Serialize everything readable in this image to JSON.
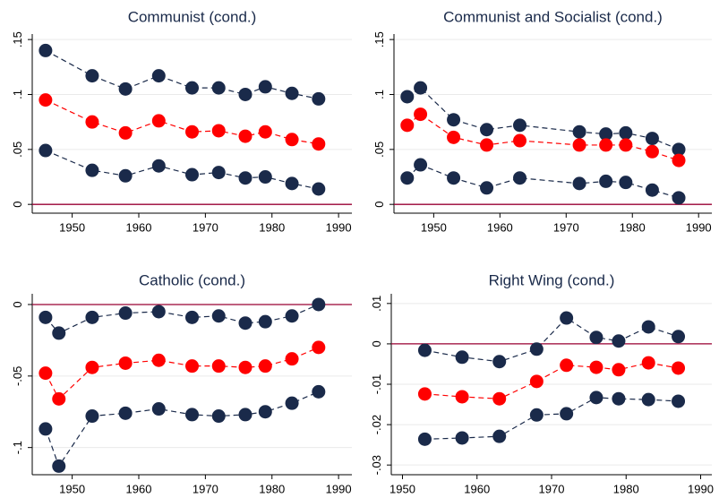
{
  "chart_data": [
    {
      "type": "line",
      "title": "Communist (cond.)",
      "x": [
        1946,
        1953,
        1958,
        1963,
        1968,
        1972,
        1976,
        1979,
        1983,
        1987
      ],
      "series": [
        {
          "color": "#1a2a4a",
          "values": [
            0.14,
            0.117,
            0.105,
            0.117,
            0.106,
            0.106,
            0.1,
            0.107,
            0.101,
            0.096
          ]
        },
        {
          "color": "#ff0000",
          "values": [
            0.095,
            0.075,
            0.065,
            0.076,
            0.066,
            0.067,
            0.062,
            0.066,
            0.059,
            0.055
          ]
        },
        {
          "color": "#1a2a4a",
          "values": [
            0.049,
            0.031,
            0.026,
            0.035,
            0.027,
            0.029,
            0.024,
            0.025,
            0.019,
            0.014
          ]
        }
      ],
      "xlim": [
        1944,
        1992
      ],
      "xticks": [
        1950,
        1960,
        1970,
        1980,
        1990
      ],
      "ylim": [
        -0.008,
        0.155
      ],
      "yticks": [
        0,
        {
          "value": 0.05,
          "label": ".05"
        },
        {
          "value": 0.1,
          "label": ".1"
        },
        {
          "value": 0.15,
          "label": ".15"
        }
      ],
      "grid": true,
      "hline": 0,
      "hline_color": "#990033"
    },
    {
      "type": "line",
      "title": "Communist and Socialist (cond.)",
      "x": [
        1946,
        1948,
        1953,
        1958,
        1963,
        1972,
        1976,
        1979,
        1983,
        1987
      ],
      "series": [
        {
          "color": "#1a2a4a",
          "values": [
            0.098,
            0.106,
            0.077,
            0.068,
            0.072,
            0.066,
            0.064,
            0.065,
            0.06,
            0.05
          ]
        },
        {
          "color": "#ff0000",
          "values": [
            0.072,
            0.082,
            0.061,
            0.054,
            0.058,
            0.054,
            0.054,
            0.054,
            0.048,
            0.04
          ]
        },
        {
          "color": "#1a2a4a",
          "values": [
            0.024,
            0.036,
            0.024,
            0.015,
            0.024,
            0.019,
            0.021,
            0.02,
            0.013,
            0.006
          ]
        }
      ],
      "xlim": [
        1944,
        1992
      ],
      "xticks": [
        1950,
        1960,
        1970,
        1980,
        1990
      ],
      "ylim": [
        -0.008,
        0.155
      ],
      "yticks": [
        0,
        {
          "value": 0.05,
          "label": ".05"
        },
        {
          "value": 0.1,
          "label": ".1"
        },
        {
          "value": 0.15,
          "label": ".15"
        }
      ],
      "grid": true,
      "hline": 0,
      "hline_color": "#990033"
    },
    {
      "type": "line",
      "title": "Catholic (cond.)",
      "x": [
        1946,
        1948,
        1953,
        1958,
        1963,
        1968,
        1972,
        1976,
        1979,
        1983,
        1987
      ],
      "series": [
        {
          "color": "#1a2a4a",
          "values": [
            -0.009,
            -0.02,
            -0.009,
            -0.006,
            -0.005,
            -0.009,
            -0.008,
            -0.013,
            -0.012,
            -0.008,
            0.0
          ]
        },
        {
          "color": "#ff0000",
          "values": [
            -0.048,
            -0.066,
            -0.044,
            -0.041,
            -0.039,
            -0.043,
            -0.043,
            -0.044,
            -0.043,
            -0.038,
            -0.03
          ]
        },
        {
          "color": "#1a2a4a",
          "values": [
            -0.087,
            -0.113,
            -0.078,
            -0.076,
            -0.073,
            -0.077,
            -0.078,
            -0.077,
            -0.075,
            -0.069,
            -0.061
          ]
        }
      ],
      "xlim": [
        1944,
        1992
      ],
      "xticks": [
        1950,
        1960,
        1970,
        1980,
        1990
      ],
      "ylim": [
        -0.119,
        0.0075
      ],
      "yticks": [
        {
          "value": -0.1,
          "label": "-.1"
        },
        {
          "value": -0.05,
          "label": "-.05"
        },
        0
      ],
      "grid": true,
      "hline": 0,
      "hline_color": "#990033"
    },
    {
      "type": "line",
      "title": "Right Wing (cond.)",
      "x": [
        1953,
        1958,
        1963,
        1968,
        1972,
        1976,
        1979,
        1983,
        1987
      ],
      "series": [
        {
          "color": "#1a2a4a",
          "values": [
            -0.0016,
            -0.0033,
            -0.0044,
            -0.0013,
            0.0064,
            0.0016,
            0.0007,
            0.0042,
            0.0018
          ]
        },
        {
          "color": "#ff0000",
          "values": [
            -0.0124,
            -0.0131,
            -0.0136,
            -0.0093,
            -0.0053,
            -0.0058,
            -0.0064,
            -0.0047,
            -0.006
          ]
        },
        {
          "color": "#1a2a4a",
          "values": [
            -0.0236,
            -0.0233,
            -0.0229,
            -0.0176,
            -0.0173,
            -0.0133,
            -0.0136,
            -0.0138,
            -0.0142
          ]
        }
      ],
      "xlim": [
        1948.5,
        1991.5
      ],
      "xticks": [
        1950,
        1960,
        1970,
        1980,
        1990
      ],
      "ylim": [
        -0.0324,
        0.0124
      ],
      "yticks": [
        {
          "value": -0.03,
          "label": "-.03"
        },
        {
          "value": -0.02,
          "label": "-.02"
        },
        {
          "value": -0.01,
          "label": "-.01"
        },
        0,
        {
          "value": 0.01,
          "label": ".01"
        }
      ],
      "grid": true,
      "hline": 0,
      "hline_color": "#990033"
    }
  ]
}
